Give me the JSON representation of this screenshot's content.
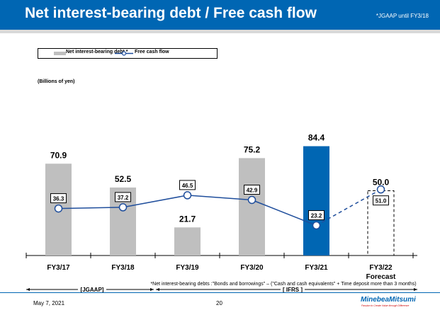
{
  "header": {
    "title": "Net interest-bearing debt / Free cash flow",
    "note": "*JGAAP until FY3/18"
  },
  "legend": {
    "bar": "Net interest-bearing debt *",
    "line": "Free cash flow"
  },
  "units": "(Billions of yen)",
  "chart_data": {
    "type": "bar+line",
    "categories": [
      "FY3/17",
      "FY3/18",
      "FY3/19",
      "FY3/20",
      "FY3/21",
      "FY3/22"
    ],
    "category_sublabels": [
      "",
      "",
      "",
      "",
      "",
      "Forecast"
    ],
    "series": [
      {
        "name": "Net interest-bearing debt *",
        "type": "bar",
        "values": [
          70.9,
          52.5,
          21.7,
          75.2,
          84.4,
          50.0
        ],
        "labels": [
          "70.9",
          "52.5",
          "21.7",
          "75.2",
          "84.4",
          "50.0"
        ]
      },
      {
        "name": "Free cash flow",
        "type": "line",
        "values": [
          36.3,
          37.2,
          46.5,
          42.9,
          23.2,
          51.0
        ],
        "labels": [
          "36.3",
          "37.2",
          "46.5",
          "42.9",
          "23.2",
          "51.0"
        ]
      }
    ],
    "ylim": [
      0,
      90
    ],
    "grid": false,
    "legend_position": "top-left",
    "colors": {
      "bar": "#bfbfbf",
      "highlight_bar": "#0066b3",
      "line": "#1f4e9c"
    },
    "highlight_category": "FY3/21",
    "forecast_category": "FY3/22"
  },
  "footnote": "*Net interest-bearing debts :\"Bonds and borrowings\" – (\"Cash and cash equivalents\" + Time deposit more than 3 months)",
  "periods": {
    "jgaap": "[JGAAP]",
    "ifrs": "[ IFRS ]"
  },
  "footer": {
    "date": "May 7, 2021",
    "page": "20",
    "logo": "MinebeaMitsumi",
    "tagline": "Passion to Create Value through Difference"
  }
}
